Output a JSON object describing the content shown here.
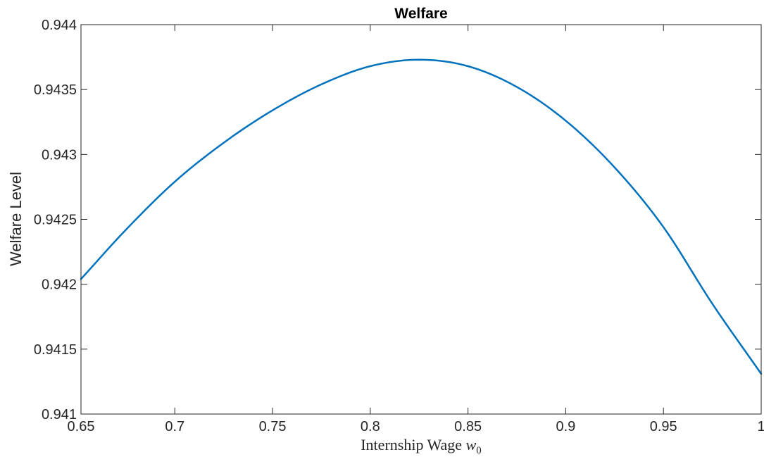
{
  "chart_data": {
    "type": "line",
    "title": "Welfare",
    "xlabel": "Internship Wage ",
    "xlabel_var": "w",
    "xlabel_sub": "0",
    "ylabel": "Welfare Level",
    "xlim": [
      0.652,
      1.0
    ],
    "ylim": [
      0.941,
      0.944
    ],
    "xticks": [
      0.65,
      0.7,
      0.75,
      0.8,
      0.85,
      0.9,
      0.95,
      1
    ],
    "xtick_labels": [
      "0.65",
      "0.7",
      "0.75",
      "0.8",
      "0.85",
      "0.9",
      "0.95",
      "1"
    ],
    "yticks": [
      0.941,
      0.9415,
      0.942,
      0.9425,
      0.943,
      0.9435,
      0.944
    ],
    "ytick_labels": [
      "0.941",
      "0.9415",
      "0.942",
      "0.9425",
      "0.943",
      "0.9435",
      "0.944"
    ],
    "grid": false,
    "box": true,
    "line_color": "#0072BD",
    "series": [
      {
        "x": [
          0.652,
          0.675,
          0.7,
          0.725,
          0.75,
          0.775,
          0.8,
          0.825,
          0.85,
          0.875,
          0.9,
          0.925,
          0.95,
          0.975,
          1.0
        ],
        "y": [
          0.94204,
          0.94242,
          0.94279,
          0.94309,
          0.94334,
          0.94354,
          0.94368,
          0.94373,
          0.94368,
          0.94352,
          0.94326,
          0.9429,
          0.94244,
          0.94185,
          0.94131
        ]
      }
    ]
  }
}
